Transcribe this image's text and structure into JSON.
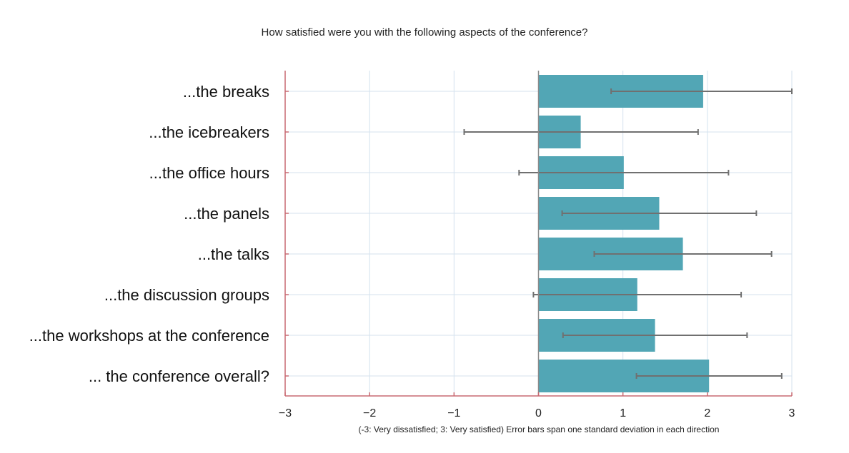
{
  "chart_data": {
    "type": "bar",
    "orientation": "horizontal",
    "title": "How satisfied were you with the following aspects of the conference?",
    "xlabel": "(-3: Very dissatisfied; 3: Very satisfied) Error bars span one standard deviation in each direction",
    "ylabel": "",
    "xlim": [
      -3,
      3
    ],
    "xticks": [
      -3,
      -2,
      -1,
      0,
      1,
      2,
      3
    ],
    "xtick_labels": [
      "−3",
      "−2",
      "−1",
      "0",
      "1",
      "2",
      "3"
    ],
    "grid": true,
    "categories": [
      "...the breaks",
      "...the icebreakers",
      "...the office hours",
      "...the panels",
      "...the talks",
      "...the discussion groups",
      "...the workshops at the conference",
      "... the conference overall?"
    ],
    "values": [
      1.95,
      0.5,
      1.01,
      1.43,
      1.71,
      1.17,
      1.38,
      2.02
    ],
    "error_low": [
      0.86,
      -0.88,
      -0.23,
      0.28,
      0.66,
      -0.06,
      0.29,
      1.16
    ],
    "error_high": [
      3.0,
      1.89,
      2.25,
      2.58,
      2.76,
      2.4,
      2.47,
      2.88
    ],
    "colors": {
      "bar": "#52a6b5",
      "error": "#707070",
      "grid": "#d4e2ee",
      "axis": "#c96a72",
      "zero_line": "#8a8a8a"
    }
  }
}
